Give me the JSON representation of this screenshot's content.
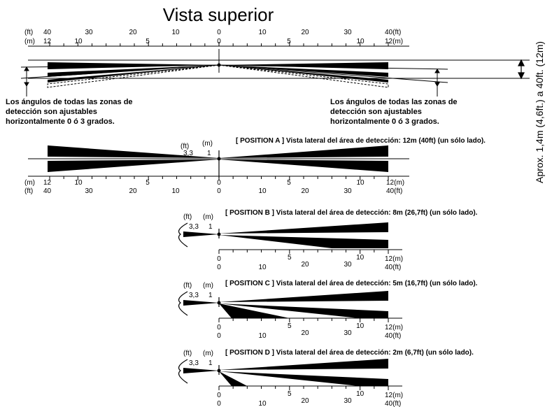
{
  "title": "Vista superior",
  "side_label": "Aprox. 1,4m (4,6ft.) a 40ft. (12m)",
  "adjust_note": [
    "Los ángulos de todas las zonas de",
    "detección son ajustables",
    "horizontalmente 0 ó 3 grados."
  ],
  "units": {
    "ft": "(ft)",
    "m": "(m)"
  },
  "scale": {
    "ft_ticks": [
      "40",
      "30",
      "20",
      "10",
      "0",
      "10",
      "20",
      "30",
      "40"
    ],
    "m_ticks": [
      "12",
      "10",
      "5",
      "0",
      "5",
      "10",
      "12"
    ],
    "right_ft": "40(ft)",
    "right_m": "12(m)",
    "right_m_low": "12(m)",
    "right_ft_low": "40(ft)"
  },
  "height_labels": {
    "ft": "3,3",
    "m": "1"
  },
  "positions": [
    {
      "heading": "[ POSITION A ] Vista lateral del área de detección: 12m (40ft) (un sólo lado).",
      "range_m": 12
    },
    {
      "heading": "[ POSITION B ] Vista lateral del área de detección: 8m (26,7ft) (un sólo lado).",
      "range_m": 8
    },
    {
      "heading": "[ POSITION C ] Vista lateral del área de detección: 5m (16,7ft) (un sólo lado).",
      "range_m": 5
    },
    {
      "heading": "[ POSITION D ] Vista lateral del área de detección: 2m (6,7ft) (un sólo lado).",
      "range_m": 2
    }
  ]
}
